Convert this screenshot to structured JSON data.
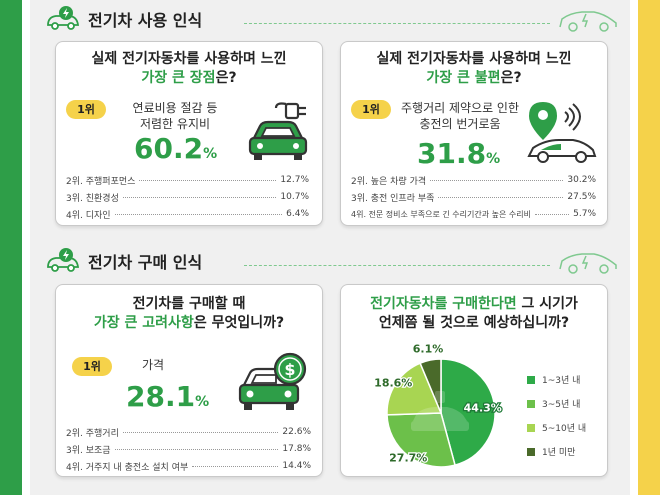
{
  "sections": {
    "usage_title": "전기차 사용 인식",
    "purchase_title": "전기차 구매 인식"
  },
  "card_advantage": {
    "question_line1": "실제 전기자동차를 사용하며 느낀",
    "question_hl": "가장 큰 장점",
    "question_end": "은?",
    "rank_badge": "1위",
    "top_label_line1": "연료비용 절감 등",
    "top_label_line2": "저렴한 유지비",
    "top_value": "60.2",
    "unit": "%",
    "others": [
      {
        "label": "2위. 주행퍼포먼스",
        "value": "12.7%"
      },
      {
        "label": "3위. 친환경성",
        "value": "10.7%"
      },
      {
        "label": "4위. 디자인",
        "value": "6.4%"
      }
    ]
  },
  "card_disadvantage": {
    "question_line1": "실제 전기자동차를 사용하며 느낀",
    "question_hl": "가장 큰 불편",
    "question_end": "은?",
    "rank_badge": "1위",
    "top_label_line1": "주행거리 제약으로 인한",
    "top_label_line2": "충전의 번거로움",
    "top_value": "31.8",
    "unit": "%",
    "others": [
      {
        "label": "2위. 높은 차량 가격",
        "value": "30.2%"
      },
      {
        "label": "3위. 충전 인프라 부족",
        "value": "27.5%"
      },
      {
        "label": "4위. 전문 정비소 부족으로 긴 수리기간과 높은 수리비",
        "value": "5.7%"
      }
    ]
  },
  "card_consideration": {
    "question_line1": "전기차를 구매할 때",
    "question_hl": "가장 큰 고려사항",
    "question_end": "은 무엇입니까?",
    "rank_badge": "1위",
    "top_label": "가격",
    "top_value": "28.1",
    "unit": "%",
    "others": [
      {
        "label": "2위. 주행거리",
        "value": "22.6%"
      },
      {
        "label": "3위. 보조금",
        "value": "17.8%"
      },
      {
        "label": "4위. 거주지 내 충전소 설치 여부",
        "value": "14.4%"
      }
    ]
  },
  "card_timing": {
    "question_hl": "전기자동차를 구매한다면",
    "question_rest": " 그 시기가",
    "question_line2": "언제쯤 될 것으로 예상하십니까?"
  },
  "chart_data": {
    "type": "pie",
    "categories": [
      "1~3년 내",
      "3~5년 내",
      "5~10년 내",
      "1년 미만"
    ],
    "values": [
      44.3,
      27.7,
      18.6,
      6.1
    ],
    "labels": [
      "44.3%",
      "27.7%",
      "18.6%",
      "6.1%"
    ],
    "colors": [
      "#2eaa48",
      "#6cc04a",
      "#a8d552",
      "#4a6a2a"
    ],
    "legend_position": "right",
    "title": "전기자동차를 구매한다면 그 시기가 언제쯤 될 것으로 예상하십니까?"
  },
  "colors": {
    "green": "#2e9e48",
    "yellow": "#f5d24a"
  },
  "icons": [
    "ev-car-plug-icon",
    "location-pin-car-icon",
    "dollar-car-icon",
    "ev-charging-car-icon",
    "car-outline-icon"
  ]
}
